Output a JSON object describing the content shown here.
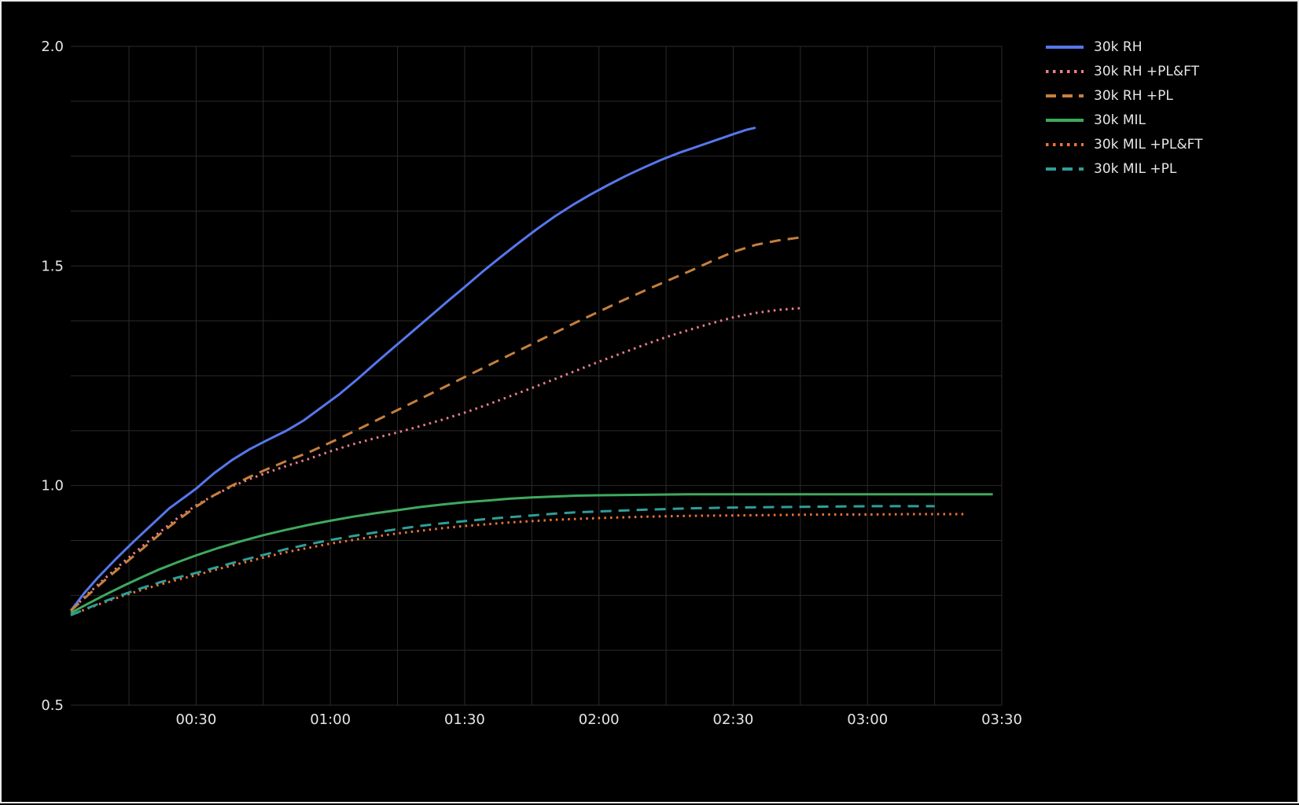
{
  "chart_data": {
    "type": "line",
    "title": "",
    "xlabel": "",
    "ylabel": "",
    "x_axis": {
      "kind": "relative-time",
      "tick_minutes": [
        30,
        60,
        90,
        120,
        150,
        180,
        210
      ],
      "tick_labels": [
        "00:30",
        "01:00",
        "01:30",
        "02:00",
        "02:30",
        "03:00",
        "03:30"
      ],
      "minor_grid_step_minutes": 15,
      "range_minutes": [
        2,
        210
      ]
    },
    "y_axis": {
      "tick_values": [
        0.5,
        1.0,
        1.5,
        2.0
      ],
      "tick_labels": [
        "0.5",
        "1.0",
        "1.5",
        "2.0"
      ],
      "minor_grid_step": 0.125,
      "range": [
        0.5,
        2.0
      ]
    },
    "grid": {
      "on": true,
      "color": "#2a2a2a"
    },
    "background_color": "#000000",
    "text_color": "#e6e6e6",
    "legend_position": "outside-right-top",
    "series": [
      {
        "name": "30k RH",
        "color": "#5677ec",
        "style": "solid",
        "points": [
          [
            2,
            0.715
          ],
          [
            5,
            0.755
          ],
          [
            8,
            0.79
          ],
          [
            12,
            0.832
          ],
          [
            16,
            0.872
          ],
          [
            20,
            0.91
          ],
          [
            24,
            0.948
          ],
          [
            28,
            0.978
          ],
          [
            30,
            0.993
          ],
          [
            34,
            1.028
          ],
          [
            38,
            1.058
          ],
          [
            42,
            1.083
          ],
          [
            46,
            1.104
          ],
          [
            50,
            1.124
          ],
          [
            54,
            1.148
          ],
          [
            58,
            1.178
          ],
          [
            62,
            1.208
          ],
          [
            66,
            1.242
          ],
          [
            70,
            1.278
          ],
          [
            74,
            1.313
          ],
          [
            78,
            1.348
          ],
          [
            82,
            1.383
          ],
          [
            86,
            1.418
          ],
          [
            90,
            1.452
          ],
          [
            94,
            1.487
          ],
          [
            98,
            1.52
          ],
          [
            102,
            1.552
          ],
          [
            106,
            1.583
          ],
          [
            110,
            1.612
          ],
          [
            114,
            1.638
          ],
          [
            118,
            1.662
          ],
          [
            122,
            1.684
          ],
          [
            126,
            1.705
          ],
          [
            130,
            1.724
          ],
          [
            134,
            1.742
          ],
          [
            138,
            1.758
          ],
          [
            142,
            1.772
          ],
          [
            146,
            1.786
          ],
          [
            150,
            1.8
          ],
          [
            153,
            1.81
          ],
          [
            155,
            1.815
          ]
        ]
      },
      {
        "name": "30k RH +PL&FT",
        "color": "#ec7d8e",
        "style": "dotted",
        "points": [
          [
            2,
            0.715
          ],
          [
            6,
            0.755
          ],
          [
            10,
            0.792
          ],
          [
            14,
            0.828
          ],
          [
            18,
            0.862
          ],
          [
            22,
            0.895
          ],
          [
            26,
            0.927
          ],
          [
            30,
            0.955
          ],
          [
            34,
            0.978
          ],
          [
            38,
            0.998
          ],
          [
            42,
            1.015
          ],
          [
            46,
            1.03
          ],
          [
            50,
            1.044
          ],
          [
            55,
            1.06
          ],
          [
            60,
            1.078
          ],
          [
            65,
            1.094
          ],
          [
            70,
            1.108
          ],
          [
            75,
            1.121
          ],
          [
            80,
            1.135
          ],
          [
            85,
            1.15
          ],
          [
            90,
            1.166
          ],
          [
            95,
            1.184
          ],
          [
            100,
            1.203
          ],
          [
            105,
            1.222
          ],
          [
            110,
            1.242
          ],
          [
            115,
            1.262
          ],
          [
            120,
            1.282
          ],
          [
            125,
            1.301
          ],
          [
            130,
            1.32
          ],
          [
            135,
            1.338
          ],
          [
            140,
            1.354
          ],
          [
            145,
            1.369
          ],
          [
            150,
            1.383
          ],
          [
            155,
            1.393
          ],
          [
            160,
            1.4
          ],
          [
            165,
            1.404
          ]
        ]
      },
      {
        "name": "30k RH +PL",
        "color": "#c67f3e",
        "style": "dashed",
        "points": [
          [
            2,
            0.715
          ],
          [
            6,
            0.752
          ],
          [
            10,
            0.788
          ],
          [
            14,
            0.822
          ],
          [
            18,
            0.856
          ],
          [
            22,
            0.89
          ],
          [
            26,
            0.922
          ],
          [
            30,
            0.952
          ],
          [
            34,
            0.978
          ],
          [
            38,
            1.0
          ],
          [
            42,
            1.02
          ],
          [
            46,
            1.038
          ],
          [
            50,
            1.055
          ],
          [
            55,
            1.075
          ],
          [
            60,
            1.098
          ],
          [
            65,
            1.122
          ],
          [
            70,
            1.147
          ],
          [
            75,
            1.172
          ],
          [
            80,
            1.197
          ],
          [
            85,
            1.222
          ],
          [
            90,
            1.247
          ],
          [
            95,
            1.272
          ],
          [
            100,
            1.297
          ],
          [
            105,
            1.322
          ],
          [
            110,
            1.347
          ],
          [
            115,
            1.372
          ],
          [
            120,
            1.396
          ],
          [
            125,
            1.42
          ],
          [
            130,
            1.443
          ],
          [
            135,
            1.465
          ],
          [
            140,
            1.487
          ],
          [
            145,
            1.51
          ],
          [
            150,
            1.532
          ],
          [
            155,
            1.548
          ],
          [
            160,
            1.558
          ],
          [
            165,
            1.565
          ]
        ]
      },
      {
        "name": "30k MIL",
        "color": "#3fa95e",
        "style": "solid",
        "points": [
          [
            2,
            0.71
          ],
          [
            6,
            0.732
          ],
          [
            10,
            0.753
          ],
          [
            14,
            0.773
          ],
          [
            18,
            0.792
          ],
          [
            22,
            0.81
          ],
          [
            26,
            0.826
          ],
          [
            30,
            0.841
          ],
          [
            35,
            0.858
          ],
          [
            40,
            0.873
          ],
          [
            45,
            0.887
          ],
          [
            50,
            0.899
          ],
          [
            55,
            0.91
          ],
          [
            60,
            0.92
          ],
          [
            65,
            0.929
          ],
          [
            70,
            0.937
          ],
          [
            75,
            0.944
          ],
          [
            80,
            0.951
          ],
          [
            85,
            0.957
          ],
          [
            90,
            0.962
          ],
          [
            95,
            0.966
          ],
          [
            100,
            0.97
          ],
          [
            105,
            0.973
          ],
          [
            110,
            0.975
          ],
          [
            115,
            0.977
          ],
          [
            120,
            0.978
          ],
          [
            130,
            0.979
          ],
          [
            140,
            0.98
          ],
          [
            155,
            0.98
          ],
          [
            170,
            0.98
          ],
          [
            185,
            0.98
          ],
          [
            200,
            0.98
          ],
          [
            208,
            0.98
          ]
        ]
      },
      {
        "name": "30k MIL +PL&FT",
        "color": "#ee7334",
        "style": "dotted",
        "points": [
          [
            2,
            0.705
          ],
          [
            6,
            0.721
          ],
          [
            10,
            0.736
          ],
          [
            14,
            0.75
          ],
          [
            18,
            0.763
          ],
          [
            22,
            0.775
          ],
          [
            26,
            0.786
          ],
          [
            30,
            0.796
          ],
          [
            35,
            0.81
          ],
          [
            40,
            0.823
          ],
          [
            45,
            0.836
          ],
          [
            50,
            0.848
          ],
          [
            55,
            0.858
          ],
          [
            60,
            0.868
          ],
          [
            65,
            0.876
          ],
          [
            70,
            0.884
          ],
          [
            75,
            0.891
          ],
          [
            80,
            0.897
          ],
          [
            85,
            0.903
          ],
          [
            90,
            0.908
          ],
          [
            95,
            0.912
          ],
          [
            100,
            0.916
          ],
          [
            105,
            0.919
          ],
          [
            110,
            0.922
          ],
          [
            115,
            0.924
          ],
          [
            120,
            0.926
          ],
          [
            130,
            0.929
          ],
          [
            140,
            0.931
          ],
          [
            150,
            0.932
          ],
          [
            160,
            0.933
          ],
          [
            170,
            0.934
          ],
          [
            180,
            0.934
          ],
          [
            190,
            0.935
          ],
          [
            202,
            0.935
          ]
        ]
      },
      {
        "name": "30k MIL +PL",
        "color": "#2f9e97",
        "style": "dashed",
        "points": [
          [
            2,
            0.705
          ],
          [
            6,
            0.722
          ],
          [
            10,
            0.738
          ],
          [
            14,
            0.753
          ],
          [
            18,
            0.767
          ],
          [
            22,
            0.78
          ],
          [
            26,
            0.791
          ],
          [
            30,
            0.801
          ],
          [
            35,
            0.815
          ],
          [
            40,
            0.829
          ],
          [
            45,
            0.842
          ],
          [
            50,
            0.855
          ],
          [
            55,
            0.866
          ],
          [
            60,
            0.876
          ],
          [
            65,
            0.885
          ],
          [
            70,
            0.893
          ],
          [
            75,
            0.901
          ],
          [
            80,
            0.908
          ],
          [
            85,
            0.914
          ],
          [
            90,
            0.919
          ],
          [
            95,
            0.924
          ],
          [
            100,
            0.928
          ],
          [
            105,
            0.932
          ],
          [
            110,
            0.936
          ],
          [
            115,
            0.939
          ],
          [
            120,
            0.941
          ],
          [
            125,
            0.943
          ],
          [
            130,
            0.945
          ],
          [
            140,
            0.948
          ],
          [
            150,
            0.95
          ],
          [
            160,
            0.951
          ],
          [
            170,
            0.952
          ],
          [
            180,
            0.953
          ],
          [
            195,
            0.953
          ]
        ]
      }
    ]
  }
}
